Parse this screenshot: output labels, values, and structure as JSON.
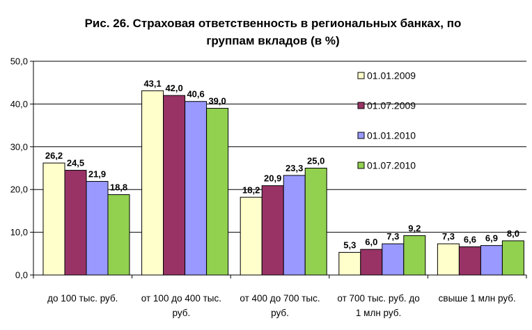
{
  "chart_data": {
    "type": "bar",
    "title_lines": [
      "Рис. 26. Страховая ответственность в региональных банках, по",
      "группам вкладов (в %)"
    ],
    "categories": [
      [
        "до 100 тыс. руб."
      ],
      [
        "от 100 до 400 тыс.",
        "руб."
      ],
      [
        "от 400 до 700 тыс.",
        "руб."
      ],
      [
        "от 700 тыс. руб. до",
        "1 млн руб."
      ],
      [
        "свыше 1 млн руб."
      ]
    ],
    "series": [
      {
        "name": "01.01.2009",
        "color": "#FFFFCC",
        "values": [
          26.2,
          43.1,
          18.2,
          5.3,
          7.3
        ],
        "labels": [
          "26,2",
          "43,1",
          "18,2",
          "5,3",
          "7,3"
        ]
      },
      {
        "name": "01.07.2009",
        "color": "#993366",
        "values": [
          24.5,
          42.0,
          20.9,
          6.0,
          6.6
        ],
        "labels": [
          "24,5",
          "42,0",
          "20,9",
          "6,0",
          "6,6"
        ]
      },
      {
        "name": "01.01.2010",
        "color": "#9999FF",
        "values": [
          21.9,
          40.6,
          23.3,
          7.3,
          6.9
        ],
        "labels": [
          "21,9",
          "40,6",
          "23,3",
          "7,3",
          "6,9"
        ]
      },
      {
        "name": "01.07.2010",
        "color": "#92D050",
        "values": [
          18.8,
          39.0,
          25.0,
          9.2,
          8.0
        ],
        "labels": [
          "18,8",
          "39,0",
          "25,0",
          "9,2",
          "8,0"
        ]
      }
    ],
    "ylim": [
      0,
      50
    ],
    "yticks": [
      0,
      10,
      20,
      30,
      40,
      50
    ],
    "ytick_labels": [
      "0,0",
      "10,0",
      "20,0",
      "30,0",
      "40,0",
      "50,0"
    ],
    "grid": true,
    "legend_position": "top-right"
  }
}
